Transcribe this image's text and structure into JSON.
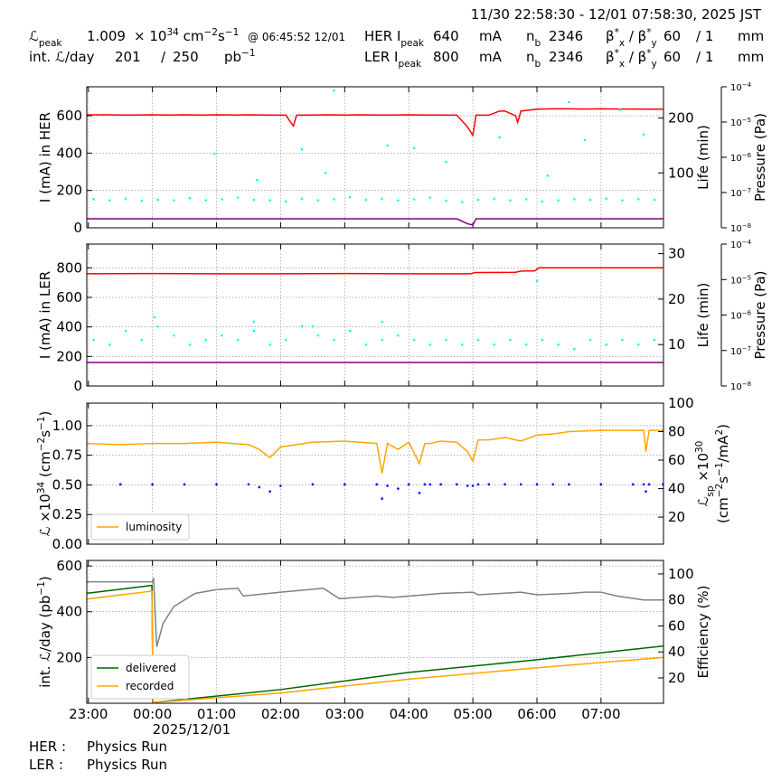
{
  "header": {
    "time_range": "11/30 22:58:30 - 12/01 07:58:30, 2025 JST",
    "lumi_peak": {
      "label": [
        {
          "t": "ℒ"
        },
        {
          "sub": "peak"
        }
      ],
      "value": 1.009,
      "unit": [
        {
          "t": "× 10"
        },
        {
          "sup": "34"
        },
        {
          "t": " cm"
        },
        {
          "sup": "−2"
        },
        {
          "t": "s"
        },
        {
          "sup": "−1"
        }
      ],
      "time": "@ 06:45:52 12/01"
    },
    "int_lumi": {
      "label": "int. ℒ/day",
      "value": 201,
      "sep": "/",
      "target": 250,
      "unit": [
        {
          "t": "pb"
        },
        {
          "sup": "−1"
        }
      ]
    },
    "her": {
      "label": [
        {
          "t": "HER I"
        },
        {
          "sub": "peak"
        }
      ],
      "current": 640,
      "current_unit": "mA",
      "nb_label": [
        {
          "t": "n"
        },
        {
          "sub": "b"
        }
      ],
      "nb": 2346,
      "beta_label": [
        {
          "t": "β"
        },
        {
          "sup": "*"
        },
        {
          "sub": "x"
        },
        {
          "t": " / β"
        },
        {
          "sup": "*"
        },
        {
          "sub": "y"
        }
      ],
      "beta_x": 60,
      "beta_y": "/ 1",
      "beta_unit": "mm"
    },
    "ler": {
      "label": [
        {
          "t": "LER I"
        },
        {
          "sub": "peak"
        }
      ],
      "current": 800,
      "current_unit": "mA",
      "nb_label": [
        {
          "t": "n"
        },
        {
          "sub": "b"
        }
      ],
      "nb": 2346,
      "beta_label": [
        {
          "t": "β"
        },
        {
          "sup": "*"
        },
        {
          "sub": "x"
        },
        {
          "t": " / β"
        },
        {
          "sup": "*"
        },
        {
          "sub": "y"
        }
      ],
      "beta_x": 60,
      "beta_y": "/ 1",
      "beta_unit": "mm"
    }
  },
  "chart_data": [
    {
      "type": "line",
      "ylabel": "I (mA) in HER",
      "y2label": "Life (min)",
      "y3label": "Pressure (Pa)",
      "xlim": [
        "22:58:30",
        "07:58:30"
      ],
      "ylim": [
        0,
        755
      ],
      "yticks": [
        0,
        200,
        400,
        600
      ],
      "y2lim": [
        0,
        257
      ],
      "y2ticks": [
        100,
        200
      ],
      "y3lim": [
        1e-08,
        0.0001
      ],
      "y3log": true,
      "y3ticks": [
        {
          "value": 1e-08,
          "label": [
            {
              "t": "10"
            },
            {
              "sup": "−8"
            }
          ]
        },
        {
          "value": 1e-07,
          "label": [
            {
              "t": "10"
            },
            {
              "sup": "−7"
            }
          ]
        },
        {
          "value": 1e-06,
          "label": [
            {
              "t": "10"
            },
            {
              "sup": "−6"
            }
          ]
        },
        {
          "value": 1e-05,
          "label": [
            {
              "t": "10"
            },
            {
              "sup": "−5"
            }
          ]
        },
        {
          "value": 0.0001,
          "label": [
            {
              "t": "10"
            },
            {
              "sup": "−4"
            }
          ]
        }
      ],
      "grid": true,
      "x": [
        "22:58",
        "23:15",
        "23:30",
        "23:45",
        "00:00",
        "00:15",
        "00:30",
        "00:45",
        "01:00",
        "01:15",
        "01:30",
        "01:45",
        "02:05",
        "02:10",
        "02:12",
        "02:15",
        "02:30",
        "02:45",
        "03:00",
        "03:15",
        "03:30",
        "03:45",
        "04:00",
        "04:15",
        "04:30",
        "04:45",
        "04:55",
        "05:00",
        "05:03",
        "05:15",
        "05:25",
        "05:30",
        "05:40",
        "05:42",
        "05:45",
        "06:00",
        "06:15",
        "06:30",
        "06:45",
        "07:00",
        "07:15",
        "07:30",
        "07:45",
        "07:58"
      ],
      "series": [
        {
          "color": "#ff0000",
          "values": [
            605,
            605,
            604,
            604,
            605,
            604,
            605,
            604,
            605,
            604,
            605,
            604,
            603,
            560,
            545,
            603,
            604,
            605,
            604,
            605,
            604,
            604,
            605,
            604,
            604,
            603,
            540,
            495,
            603,
            603,
            625,
            625,
            600,
            565,
            625,
            635,
            637,
            637,
            636,
            637,
            636,
            636,
            635,
            635
          ]
        },
        {
          "color": "#800080",
          "axis": "y3",
          "values": [
            1.8e-08,
            1.8e-08,
            1.8e-08,
            1.8e-08,
            1.8e-08,
            1.8e-08,
            1.8e-08,
            1.8e-08,
            1.8e-08,
            1.8e-08,
            1.8e-08,
            1.8e-08,
            1.8e-08,
            1.8e-08,
            1.8e-08,
            1.8e-08,
            1.8e-08,
            1.8e-08,
            1.8e-08,
            1.8e-08,
            1.8e-08,
            1.8e-08,
            1.8e-08,
            1.8e-08,
            1.8e-08,
            1.8e-08,
            1.3e-08,
            1.2e-08,
            1.8e-08,
            1.8e-08,
            1.8e-08,
            1.8e-08,
            1.8e-08,
            1.8e-08,
            1.8e-08,
            1.8e-08,
            1.8e-08,
            1.8e-08,
            1.8e-08,
            1.8e-08,
            1.8e-08,
            1.8e-08,
            1.8e-08,
            1.8e-08
          ]
        },
        {
          "color": "#00ffff",
          "axis": "y2",
          "marker": "dot",
          "x": [
            "23:05",
            "23:20",
            "23:35",
            "23:50",
            "00:05",
            "00:20",
            "00:35",
            "00:50",
            "01:05",
            "01:20",
            "01:35",
            "01:50",
            "02:05",
            "02:20",
            "02:35",
            "02:50",
            "03:05",
            "03:20",
            "03:35",
            "03:50",
            "04:05",
            "04:20",
            "04:35",
            "04:50",
            "05:05",
            "05:20",
            "05:35",
            "05:50",
            "06:05",
            "06:20",
            "06:35",
            "06:50",
            "07:05",
            "07:20",
            "07:35",
            "07:50",
            "00:58",
            "01:38",
            "02:20",
            "02:42",
            "02:50",
            "03:40",
            "04:05",
            "04:35",
            "05:25",
            "06:10",
            "06:30",
            "06:45",
            "07:18",
            "07:40"
          ],
          "values": [
            52,
            50,
            53,
            49,
            51,
            50,
            54,
            50,
            52,
            55,
            51,
            50,
            48,
            53,
            50,
            52,
            56,
            51,
            53,
            50,
            52,
            55,
            49,
            47,
            51,
            53,
            50,
            52,
            48,
            50,
            52,
            51,
            53,
            50,
            52,
            51,
            135,
            87,
            143,
            100,
            250,
            150,
            145,
            120,
            165,
            95,
            229,
            160,
            215,
            170
          ]
        }
      ]
    },
    {
      "type": "line",
      "ylabel": "I (mA) in LER",
      "y2label": "Life (min)",
      "y3label": "Pressure (Pa)",
      "xlim": [
        "22:58:30",
        "07:58:30"
      ],
      "ylim": [
        0,
        961
      ],
      "yticks": [
        0,
        200,
        400,
        600,
        800
      ],
      "y2lim": [
        0.9,
        32.1
      ],
      "y2ticks": [
        10,
        20,
        30
      ],
      "y3lim": [
        1e-08,
        0.0001
      ],
      "y3log": true,
      "y3ticks": [
        {
          "value": 1e-08,
          "label": [
            {
              "t": "10"
            },
            {
              "sup": "−8"
            }
          ]
        },
        {
          "value": 1e-07,
          "label": [
            {
              "t": "10"
            },
            {
              "sup": "−7"
            }
          ]
        },
        {
          "value": 1e-06,
          "label": [
            {
              "t": "10"
            },
            {
              "sup": "−6"
            }
          ]
        },
        {
          "value": 1e-05,
          "label": [
            {
              "t": "10"
            },
            {
              "sup": "−5"
            }
          ]
        },
        {
          "value": 0.0001,
          "label": [
            {
              "t": "10"
            },
            {
              "sup": "−4"
            }
          ]
        }
      ],
      "grid": true,
      "x": [
        "22:58",
        "00:00",
        "01:00",
        "02:00",
        "03:00",
        "04:00",
        "04:58",
        "05:02",
        "05:40",
        "05:45",
        "05:58",
        "06:02",
        "07:00",
        "07:58"
      ],
      "series": [
        {
          "color": "#ff0000",
          "values": [
            760,
            761,
            760,
            760,
            761,
            760,
            760,
            768,
            770,
            778,
            780,
            800,
            800,
            800
          ]
        },
        {
          "color": "#800080",
          "axis": "y3",
          "values": [
            4.6e-08,
            4.6e-08,
            4.6e-08,
            4.6e-08,
            4.6e-08,
            4.6e-08,
            4.6e-08,
            4.6e-08,
            4.6e-08,
            4.6e-08,
            4.6e-08,
            4.6e-08,
            4.6e-08,
            4.6e-08
          ]
        },
        {
          "color": "#00ffff",
          "axis": "y2",
          "marker": "dot",
          "x": [
            "23:05",
            "23:20",
            "23:35",
            "23:50",
            "00:05",
            "00:20",
            "00:35",
            "00:50",
            "01:05",
            "01:20",
            "01:35",
            "01:50",
            "02:05",
            "02:20",
            "02:35",
            "02:50",
            "03:05",
            "03:20",
            "03:35",
            "03:50",
            "04:05",
            "04:20",
            "04:35",
            "04:50",
            "05:05",
            "05:20",
            "05:35",
            "05:50",
            "06:05",
            "06:20",
            "06:35",
            "06:50",
            "07:05",
            "07:20",
            "07:35",
            "07:50",
            "00:02",
            "01:35",
            "02:30",
            "03:35",
            "06:00"
          ],
          "values": [
            11,
            10,
            13,
            11,
            14,
            12,
            10,
            11,
            12,
            11,
            13,
            10,
            11,
            14,
            12,
            11,
            13,
            10,
            11,
            12,
            11,
            10,
            11,
            10,
            11,
            10,
            11,
            10,
            11,
            10,
            9,
            11,
            10,
            11,
            10,
            11,
            16,
            15,
            14,
            15,
            24
          ]
        }
      ]
    },
    {
      "type": "line",
      "ylabel": [
        {
          "t": "ℒ ×10"
        },
        {
          "sup": "34"
        },
        {
          "t": " (cm"
        },
        {
          "sup": "−2"
        },
        {
          "t": "s"
        },
        {
          "sup": "−1"
        },
        {
          "t": ")"
        }
      ],
      "y2label_lines": [
        [
          {
            "t": "ℒ"
          },
          {
            "sub": "sp"
          },
          {
            "t": " ×10"
          },
          {
            "sup": "30"
          }
        ],
        [
          {
            "t": "(cm"
          },
          {
            "sup": "−2"
          },
          {
            "t": "s"
          },
          {
            "sup": "−1"
          },
          {
            "t": "/mA"
          },
          {
            "sup": "2"
          },
          {
            "t": ")"
          }
        ]
      ],
      "xlim": [
        "22:58:30",
        "07:58:30"
      ],
      "ylim": [
        0,
        1.19
      ],
      "yticks": [
        {
          "value": 0,
          "label": "0.00"
        },
        0.25,
        {
          "value": 0.5,
          "label": "0.50"
        },
        0.75,
        {
          "value": 1,
          "label": "1.00"
        }
      ],
      "y2lim": [
        1,
        100
      ],
      "y2ticks": [
        20,
        40,
        60,
        80,
        100
      ],
      "grid": true,
      "legend": "lower left",
      "x": [
        "22:58",
        "23:30",
        "00:00",
        "00:30",
        "01:00",
        "01:30",
        "01:40",
        "01:50",
        "02:00",
        "02:30",
        "03:00",
        "03:30",
        "03:35",
        "03:40",
        "03:50",
        "04:00",
        "04:10",
        "04:15",
        "04:20",
        "04:30",
        "04:45",
        "04:55",
        "05:00",
        "05:05",
        "05:15",
        "05:30",
        "05:45",
        "06:00",
        "06:15",
        "06:30",
        "07:00",
        "07:30",
        "07:40",
        "07:42",
        "07:45",
        "07:58"
      ],
      "series": [
        {
          "name": "luminosity",
          "color": "#ffa500",
          "values": [
            0.85,
            0.84,
            0.85,
            0.85,
            0.86,
            0.84,
            0.8,
            0.73,
            0.82,
            0.86,
            0.87,
            0.85,
            0.6,
            0.85,
            0.8,
            0.86,
            0.68,
            0.85,
            0.85,
            0.87,
            0.86,
            0.78,
            0.7,
            0.88,
            0.88,
            0.9,
            0.87,
            0.92,
            0.93,
            0.95,
            0.96,
            0.96,
            0.96,
            0.78,
            0.96,
            0.96
          ]
        },
        {
          "color": "#0000ff",
          "axis": "y2",
          "marker": "dot",
          "values": [
            43,
            43,
            43,
            43,
            43,
            43,
            41,
            38,
            42,
            43,
            43,
            43,
            33,
            42,
            40,
            43,
            37,
            43,
            43,
            43,
            43,
            42,
            42,
            43,
            43,
            43,
            43,
            43,
            43,
            43,
            43,
            43,
            43,
            38,
            43,
            43
          ]
        }
      ]
    },
    {
      "type": "line",
      "ylabel": [
        {
          "t": "int. ℒ/day (pb"
        },
        {
          "sup": "−1"
        },
        {
          "t": ")"
        }
      ],
      "y2label": "Efficiency (%)",
      "xlim": [
        "22:58:30",
        "07:58:30"
      ],
      "xticks": [
        "23:00",
        "00:00",
        "01:00",
        "02:00",
        "03:00",
        "04:00",
        "05:00",
        "06:00",
        "07:00"
      ],
      "x_date": "2025/12/01",
      "ylim": [
        0,
        624
      ],
      "yticks": [
        200,
        400,
        600
      ],
      "y2lim": [
        0.5,
        110.4
      ],
      "y2ticks": [
        20,
        40,
        60,
        80,
        100
      ],
      "grid": true,
      "legend": "lower left",
      "x": [
        "22:58",
        "23:59:30",
        "00:00:30",
        "02:00",
        "04:00",
        "06:00",
        "07:58"
      ],
      "series": [
        {
          "name": "delivered",
          "color": "#006400",
          "values": [
            480,
            515,
            3,
            60,
            135,
            190,
            250
          ]
        },
        {
          "name": "recorded",
          "color": "#ffa500",
          "values": [
            455,
            490,
            3,
            45,
            105,
            155,
            200
          ]
        },
        {
          "color": "#808080",
          "axis": "y2",
          "x": [
            "22:58",
            "00:00",
            "00:01",
            "00:04",
            "00:10",
            "00:20",
            "00:40",
            "01:00",
            "01:20",
            "01:25",
            "02:00",
            "02:40",
            "02:55",
            "03:30",
            "03:45",
            "04:30",
            "05:00",
            "05:05",
            "05:45",
            "06:00",
            "06:30",
            "06:45",
            "07:00",
            "07:15",
            "07:40",
            "07:58"
          ],
          "values": [
            94,
            94,
            97,
            44,
            62,
            75,
            85,
            88,
            89,
            83,
            86,
            89,
            81,
            83,
            82,
            85,
            86,
            84,
            86,
            84,
            85,
            86,
            86,
            83,
            80,
            80
          ]
        }
      ]
    }
  ],
  "footer": {
    "her_label": "HER :",
    "her_status": "Physics Run",
    "ler_label": "LER :",
    "ler_status": "Physics Run"
  }
}
